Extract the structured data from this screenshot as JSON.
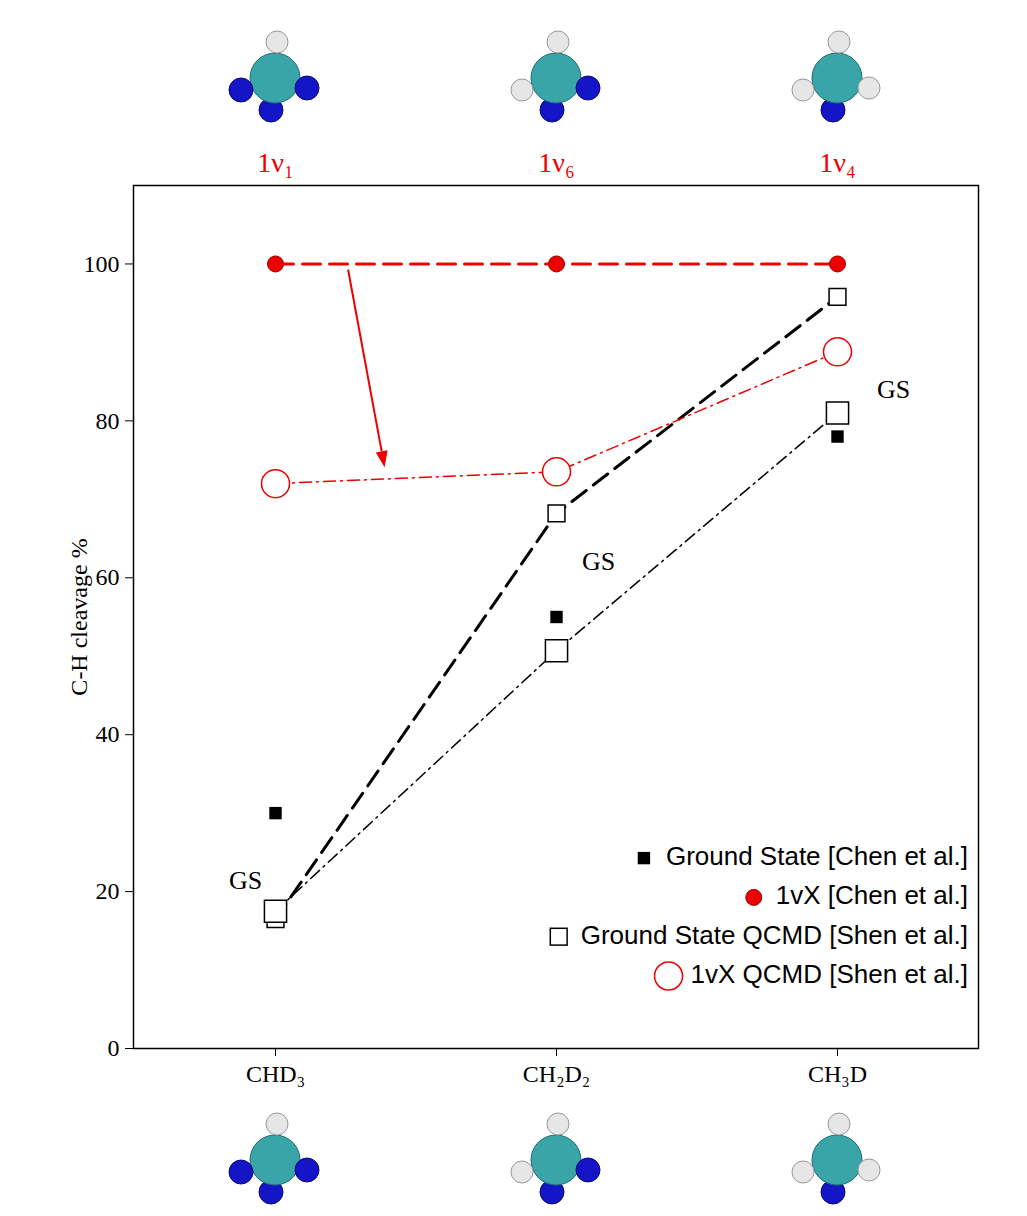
{
  "chart_data": {
    "type": "line",
    "y_label": "C-H cleavage %",
    "categories": [
      "CHD₃",
      "CH₂D₂",
      "CH₃D"
    ],
    "top_labels": [
      "1ν₁",
      "1ν₆",
      "1ν₄"
    ],
    "ylim": [
      0,
      110
    ],
    "yticks": [
      0,
      20,
      40,
      60,
      80,
      100
    ],
    "grid": false,
    "legend": "lower right",
    "series": [
      {
        "name": "Ground State [Chen et al.]",
        "color": "#000000",
        "marker": "square",
        "line_style": "none",
        "values": [
          30,
          55,
          78
        ]
      },
      {
        "name": "1vX [Chen et al.]",
        "color": "#ee0000",
        "marker": "circle",
        "line_style": "dashed",
        "values": [
          100,
          100,
          100
        ]
      },
      {
        "name": "Ground State QCMD [Shen et al.]",
        "color": "#000000",
        "marker": "square-open",
        "line_style": "dashed",
        "values": [
          16.5,
          68.2,
          95.8
        ]
      },
      {
        "name": "Ground State QCMD [Shen et al.]",
        "color": "#000000",
        "marker": "square-open",
        "line_style": "dashdot",
        "values": [
          17.5,
          50.7,
          81
        ]
      },
      {
        "name": "1vX QCMD [Shen et al.]",
        "color": "#ee0000",
        "marker": "circle-open",
        "line_style": "dashdot",
        "values": [
          72,
          73.5,
          88.8
        ]
      }
    ],
    "annotations": [
      {
        "text": "GS",
        "x": "CHD₃",
        "y": 21.4
      },
      {
        "text": "GS",
        "x": "CH₂D₂",
        "y": 62
      },
      {
        "text": "GS",
        "x": "CH₃D",
        "y": 84
      }
    ]
  }
}
